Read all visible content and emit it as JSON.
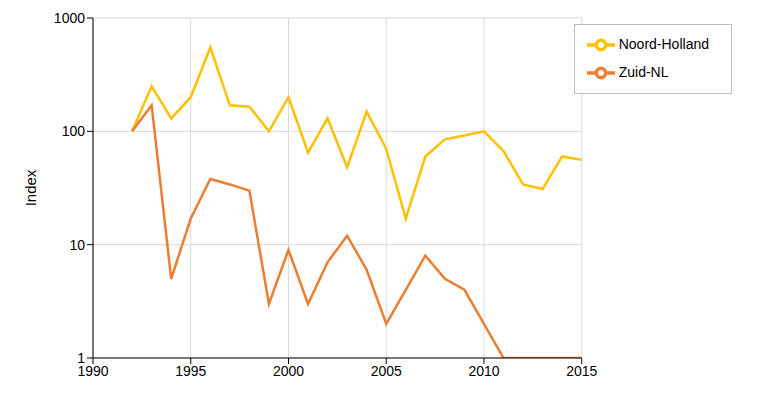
{
  "chart_data": {
    "type": "line",
    "y_label": "Index",
    "log": "y",
    "grid": true,
    "legend": "top-right",
    "x": [
      1992,
      1993,
      1994,
      1995,
      1996,
      1997,
      1998,
      1999,
      2000,
      2001,
      2002,
      2003,
      2004,
      2005,
      2006,
      2007,
      2008,
      2009,
      2010,
      2011,
      2012,
      2013,
      2014,
      2015
    ],
    "xlim": [
      1990,
      2015
    ],
    "xticks": [
      1990,
      1995,
      2000,
      2005,
      2010,
      2015
    ],
    "ylim": [
      1,
      1000
    ],
    "yticks": [
      1,
      10,
      100,
      1000
    ],
    "series": [
      {
        "name": "Noord-Holland",
        "color": "#ffc000",
        "marker": "none",
        "line_style": "solid",
        "values": [
          100,
          250,
          130,
          200,
          550,
          170,
          165,
          100,
          200,
          65,
          130,
          48,
          150,
          70,
          17,
          60,
          85,
          92,
          100,
          67,
          34,
          31,
          60,
          56
        ]
      },
      {
        "name": "Zuid-NL",
        "color": "#ed7d31",
        "marker": "none",
        "line_style": "solid",
        "values": [
          100,
          170,
          5,
          17,
          38,
          34,
          30,
          3,
          9,
          3,
          7,
          12,
          6,
          2,
          4,
          8,
          5,
          4,
          2,
          1,
          1,
          1,
          1,
          1
        ]
      }
    ]
  }
}
